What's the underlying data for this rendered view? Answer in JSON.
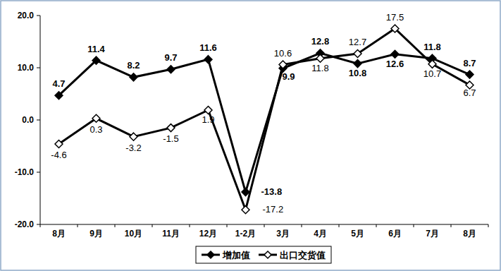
{
  "chart_data": {
    "type": "line",
    "categories": [
      "8月",
      "9月",
      "10月",
      "11月",
      "12月",
      "1-2月",
      "3月",
      "4月",
      "5月",
      "6月",
      "7月",
      "8月"
    ],
    "series": [
      {
        "name": "增加值",
        "color": "#000000",
        "marker": "diamond",
        "values": [
          4.7,
          11.4,
          8.2,
          9.7,
          11.6,
          -13.8,
          9.9,
          12.8,
          10.8,
          12.6,
          11.8,
          8.7
        ]
      },
      {
        "name": "出口交货值",
        "color": "#000000",
        "marker": "open-diamond",
        "values": [
          -4.6,
          0.3,
          -3.2,
          -1.5,
          1.9,
          -17.2,
          10.6,
          11.8,
          12.7,
          17.5,
          10.7,
          6.7
        ]
      }
    ],
    "ylim": [
      -20,
      20
    ],
    "yticks": [
      {
        "value": -20,
        "label": "-20.0"
      },
      {
        "value": -10,
        "label": "-10.0"
      },
      {
        "value": 0,
        "label": "0.0"
      },
      {
        "value": 10,
        "label": "10.0"
      },
      {
        "value": 20,
        "label": "20.0"
      }
    ],
    "grid": false,
    "legend": "bottom",
    "data_labels": true
  }
}
